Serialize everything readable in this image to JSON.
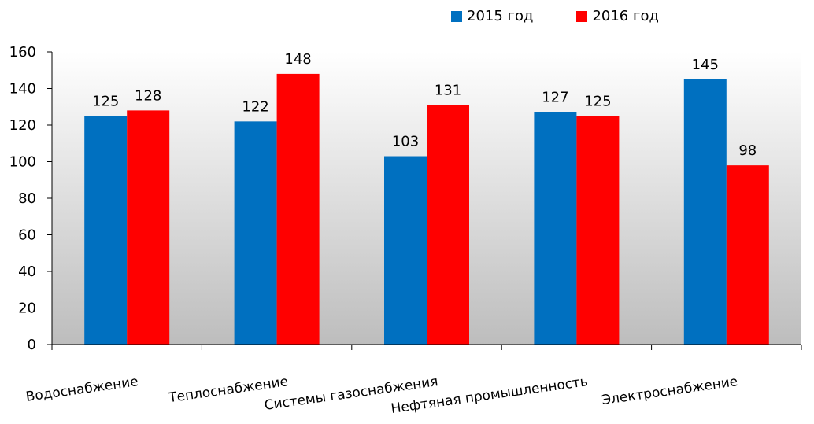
{
  "chart_data": {
    "type": "bar",
    "categories": [
      "Водоснабжение",
      "Теплоснабжение",
      "Системы газоснабжения",
      "Нефтяная промышленность",
      "Электроснабжение"
    ],
    "series": [
      {
        "name": "2015 год",
        "color": "#0070c0",
        "values": [
          125,
          122,
          103,
          127,
          145
        ]
      },
      {
        "name": "2016 год",
        "color": "#ff0000",
        "values": [
          128,
          148,
          131,
          125,
          98
        ]
      }
    ],
    "ylim": [
      0,
      160
    ],
    "yticks": [
      0,
      20,
      40,
      60,
      80,
      100,
      120,
      140,
      160
    ],
    "legend_position": "top-right",
    "grid": false,
    "background": "gradient-white-to-gray"
  }
}
